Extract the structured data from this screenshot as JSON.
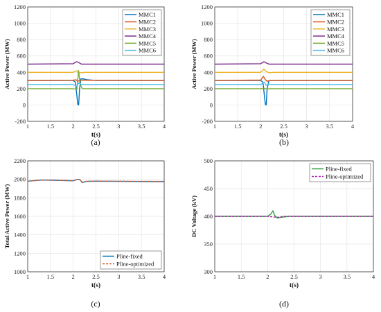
{
  "colors": {
    "MMC1": "#0072BD",
    "MMC2": "#D95319",
    "MMC3": "#EDB120",
    "MMC4": "#7E2F8E",
    "MMC5": "#77AC30",
    "MMC6": "#4DBEEE",
    "pline_fixed_a": "#0072BD",
    "pline_optimized_a": "#D95319",
    "pline_fixed_b": "#2E9E3E",
    "pline_optimized_b": "#B01AB0"
  },
  "chart_data": [
    {
      "panel_label": "(a)",
      "type": "line",
      "xlabel": "t(s)",
      "ylabel": "Active Power (MW)",
      "xlim": [
        1,
        4
      ],
      "ylim": [
        -200,
        1200
      ],
      "xticks": [
        "1",
        "1.5",
        "2",
        "2.5",
        "3",
        "3.5",
        "4"
      ],
      "yticks": [
        "-200",
        "0",
        "200",
        "400",
        "600",
        "800",
        "1000",
        "1200"
      ],
      "grid": true,
      "legend": "top-right",
      "series": [
        {
          "name": "MMC1",
          "color_key": "MMC1",
          "x": [
            1,
            2.0,
            2.05,
            2.08,
            2.1,
            2.12,
            2.14,
            2.17,
            2.22,
            2.3,
            2.5,
            4
          ],
          "y": [
            300,
            300,
            280,
            120,
            10,
            0,
            200,
            320,
            320,
            310,
            300,
            300
          ]
        },
        {
          "name": "MMC2",
          "color_key": "MMC2",
          "x": [
            1,
            2.0,
            2.06,
            2.1,
            2.14,
            2.2,
            2.3,
            4
          ],
          "y": [
            300,
            302,
            310,
            290,
            300,
            305,
            302,
            300
          ]
        },
        {
          "name": "MMC3",
          "color_key": "MMC3",
          "x": [
            1,
            2.0,
            2.08,
            2.12,
            2.16,
            2.25,
            4
          ],
          "y": [
            400,
            400,
            420,
            390,
            395,
            400,
            400
          ]
        },
        {
          "name": "MMC4",
          "color_key": "MMC4",
          "x": [
            1,
            2.0,
            2.07,
            2.12,
            2.18,
            2.3,
            4
          ],
          "y": [
            500,
            505,
            530,
            520,
            500,
            500,
            500
          ]
        },
        {
          "name": "MMC5",
          "color_key": "MMC5",
          "x": [
            1,
            2.0,
            2.08,
            2.12,
            2.15,
            2.2,
            2.3,
            4
          ],
          "y": [
            200,
            200,
            190,
            420,
            260,
            200,
            200,
            200
          ]
        },
        {
          "name": "MMC6",
          "color_key": "MMC6",
          "x": [
            1,
            2.0,
            2.08,
            2.12,
            2.16,
            2.25,
            4
          ],
          "y": [
            250,
            250,
            230,
            270,
            255,
            250,
            250
          ]
        }
      ]
    },
    {
      "panel_label": "(b)",
      "type": "line",
      "xlabel": "t(s)",
      "ylabel": "Active Power (MW)",
      "xlim": [
        1,
        4
      ],
      "ylim": [
        -200,
        1200
      ],
      "xticks": [
        "1",
        "1.5",
        "2",
        "2.5",
        "3",
        "3.5",
        "4"
      ],
      "yticks": [
        "-200",
        "0",
        "200",
        "400",
        "600",
        "800",
        "1000",
        "1200"
      ],
      "grid": true,
      "legend": "top-right",
      "series": [
        {
          "name": "MMC1",
          "color_key": "MMC1",
          "x": [
            1,
            2.0,
            2.05,
            2.08,
            2.1,
            2.12,
            2.14,
            2.18,
            2.25,
            4
          ],
          "y": [
            300,
            300,
            280,
            120,
            10,
            0,
            200,
            300,
            300,
            300
          ]
        },
        {
          "name": "MMC2",
          "color_key": "MMC2",
          "x": [
            1,
            2.0,
            2.06,
            2.1,
            2.14,
            2.2,
            2.3,
            4
          ],
          "y": [
            300,
            305,
            350,
            310,
            290,
            300,
            300,
            300
          ]
        },
        {
          "name": "MMC3",
          "color_key": "MMC3",
          "x": [
            1,
            2.0,
            2.07,
            2.12,
            2.18,
            2.3,
            4
          ],
          "y": [
            400,
            400,
            440,
            410,
            395,
            400,
            400
          ]
        },
        {
          "name": "MMC4",
          "color_key": "MMC4",
          "x": [
            1,
            2.0,
            2.07,
            2.12,
            2.18,
            2.3,
            4
          ],
          "y": [
            500,
            505,
            530,
            515,
            500,
            500,
            500
          ]
        },
        {
          "name": "MMC5",
          "color_key": "MMC5",
          "x": [
            1,
            2.0,
            2.08,
            2.12,
            2.2,
            4
          ],
          "y": [
            200,
            200,
            205,
            195,
            200,
            200
          ]
        },
        {
          "name": "MMC6",
          "color_key": "MMC6",
          "x": [
            1,
            2.0,
            2.08,
            2.12,
            2.16,
            2.25,
            4
          ],
          "y": [
            250,
            250,
            280,
            240,
            255,
            250,
            250
          ]
        }
      ]
    },
    {
      "panel_label": "(c)",
      "type": "line",
      "xlabel": "t(s)",
      "ylabel": "Total Active Power (MW)",
      "xlim": [
        1,
        4
      ],
      "ylim": [
        1000,
        2200
      ],
      "xticks": [
        "1",
        "1.5",
        "2",
        "2.5",
        "3",
        "3.5",
        "4"
      ],
      "yticks": [
        "1000",
        "1200",
        "1400",
        "1600",
        "1800",
        "2000",
        "2200"
      ],
      "grid": true,
      "legend": "bottom-right",
      "series": [
        {
          "name": "Pline-fixed",
          "color_key": "pline_fixed_a",
          "dash": false,
          "x": [
            1,
            1.3,
            1.6,
            2.0,
            2.1,
            2.15,
            2.2,
            2.3,
            2.5,
            3,
            4
          ],
          "y": [
            1980,
            1992,
            1990,
            1985,
            2000,
            1995,
            1965,
            1978,
            1980,
            1978,
            1975
          ]
        },
        {
          "name": "Pline-optimized",
          "color_key": "pline_optimized_a",
          "dash": true,
          "x": [
            1,
            1.3,
            1.6,
            2.0,
            2.1,
            2.15,
            2.2,
            2.3,
            2.5,
            3,
            4
          ],
          "y": [
            1980,
            1992,
            1990,
            1985,
            2000,
            1995,
            1968,
            1980,
            1982,
            1980,
            1978
          ]
        }
      ]
    },
    {
      "panel_label": "(d)",
      "type": "line",
      "xlabel": "t(s)",
      "ylabel": "DC Voltage (kV)",
      "xlim": [
        1,
        4
      ],
      "ylim": [
        300,
        500
      ],
      "xticks": [
        "1",
        "1.5",
        "2",
        "2.5",
        "3",
        "3.5",
        "4"
      ],
      "yticks": [
        "300",
        "350",
        "400",
        "450",
        "500"
      ],
      "grid": true,
      "legend": "top-right",
      "series": [
        {
          "name": "Pline-fixed",
          "color_key": "pline_fixed_b",
          "dash": false,
          "x": [
            1,
            2.0,
            2.06,
            2.1,
            2.13,
            2.18,
            2.25,
            2.4,
            4
          ],
          "y": [
            400,
            400,
            404,
            410,
            402,
            397,
            398,
            400,
            400
          ]
        },
        {
          "name": "Pline-optimized",
          "color_key": "pline_optimized_b",
          "dash": true,
          "x": [
            1,
            2.0,
            2.1,
            2.18,
            2.3,
            4
          ],
          "y": [
            400,
            400,
            399,
            398,
            400,
            400
          ]
        }
      ]
    }
  ]
}
